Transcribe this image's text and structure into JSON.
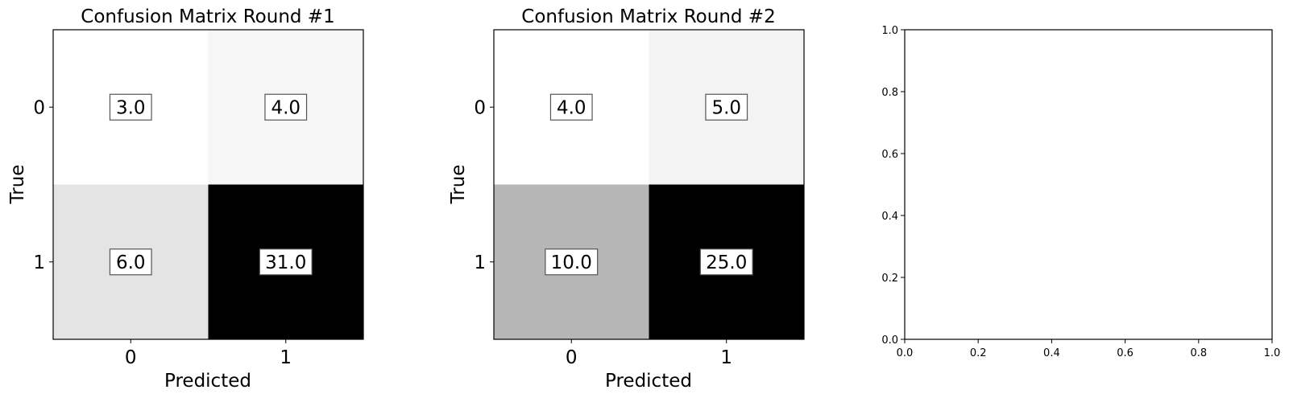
{
  "chart_data": [
    {
      "type": "heatmap",
      "title": "Confusion Matrix Round #1",
      "xlabel": "Predicted",
      "ylabel": "True",
      "x_categories": [
        "0",
        "1"
      ],
      "y_categories": [
        "0",
        "1"
      ],
      "values": [
        [
          3.0,
          4.0
        ],
        [
          6.0,
          31.0
        ]
      ],
      "cell_labels": [
        [
          "3.0",
          "4.0"
        ],
        [
          "6.0",
          "31.0"
        ]
      ],
      "colormap": "grayscale, white=low, black=high",
      "grid": false
    },
    {
      "type": "heatmap",
      "title": "Confusion Matrix Round #2",
      "xlabel": "Predicted",
      "ylabel": "True",
      "x_categories": [
        "0",
        "1"
      ],
      "y_categories": [
        "0",
        "1"
      ],
      "values": [
        [
          4.0,
          5.0
        ],
        [
          10.0,
          25.0
        ]
      ],
      "cell_labels": [
        [
          "4.0",
          "5.0"
        ],
        [
          "10.0",
          "25.0"
        ]
      ],
      "colormap": "grayscale, white=low, black=high",
      "grid": false
    },
    {
      "type": "line",
      "title": "",
      "xlabel": "",
      "ylabel": "",
      "series": [],
      "xlim": [
        0.0,
        1.0
      ],
      "ylim": [
        0.0,
        1.0
      ],
      "x_ticks": [
        "0.0",
        "0.2",
        "0.4",
        "0.6",
        "0.8",
        "1.0"
      ],
      "y_ticks": [
        "0.0",
        "0.2",
        "0.4",
        "0.6",
        "0.8",
        "1.0"
      ],
      "grid": false
    }
  ]
}
